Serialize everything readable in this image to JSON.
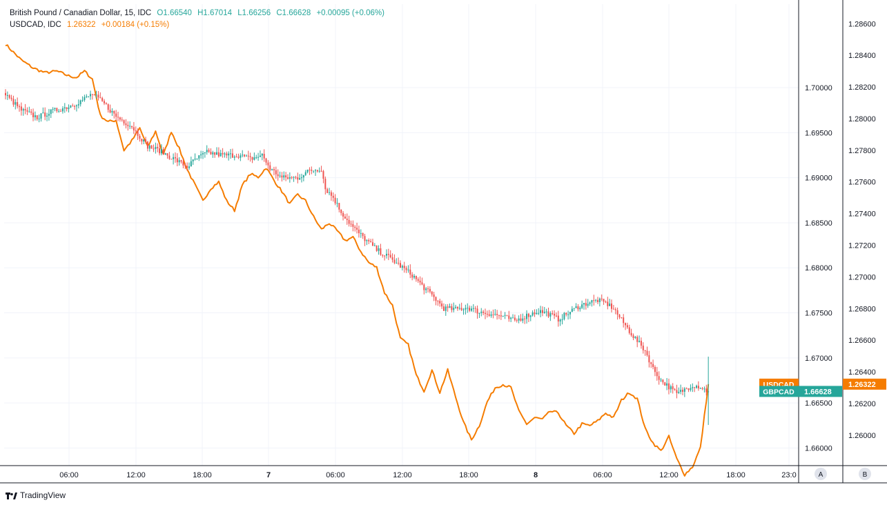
{
  "legend": {
    "main": {
      "name": "British Pound / Canadian Dollar, 15, IDC",
      "open": "O1.66540",
      "high": "H1.67014",
      "low": "L1.66256",
      "close": "C1.66628",
      "change": "+0.00095 (+0.06%)"
    },
    "compare": {
      "name": "USDCAD, IDC",
      "last": "1.26322",
      "change": "+0.00184 (+0.15%)"
    }
  },
  "footer": {
    "brand": "TradingView"
  },
  "scale_labels": {
    "left": "A",
    "right": "B"
  },
  "colors": {
    "up": "#26a69a",
    "down": "#ef5350",
    "line": "#f57c00",
    "grid": "#f0f3fa",
    "text": "#131722"
  },
  "chart_data": {
    "type": "candlestick+line",
    "x_ticks": [
      "06:00",
      "12:00",
      "18:00",
      "7",
      "06:00",
      "12:00",
      "18:00",
      "8",
      "06:00",
      "12:00",
      "18:00",
      "23:0"
    ],
    "series": [
      {
        "name": "GBPCAD",
        "type": "candlestick",
        "scale": "left",
        "last": "1.66628",
        "ylim": [
          1.6595,
          1.7085
        ],
        "ticks": [
          "1.70000",
          "1.69500",
          "1.69000",
          "1.68500",
          "1.68000",
          "1.67500",
          "1.67000",
          "1.66500",
          "1.66000"
        ],
        "path": [
          [
            0,
            1.6992
          ],
          [
            8,
            1.6975
          ],
          [
            16,
            1.6967
          ],
          [
            24,
            1.6974
          ],
          [
            32,
            1.6979
          ],
          [
            38,
            1.6985
          ],
          [
            44,
            1.6993
          ],
          [
            50,
            1.6982
          ],
          [
            56,
            1.6968
          ],
          [
            64,
            1.6957
          ],
          [
            72,
            1.6935
          ],
          [
            78,
            1.693
          ],
          [
            86,
            1.692
          ],
          [
            92,
            1.6912
          ],
          [
            96,
            1.692
          ],
          [
            102,
            1.6928
          ],
          [
            110,
            1.6925
          ],
          [
            118,
            1.6925
          ],
          [
            124,
            1.6921
          ],
          [
            130,
            1.6925
          ],
          [
            134,
            1.691
          ],
          [
            140,
            1.69
          ],
          [
            148,
            1.69
          ],
          [
            154,
            1.6908
          ],
          [
            160,
            1.691
          ],
          [
            162,
            1.6888
          ],
          [
            166,
            1.6878
          ],
          [
            170,
            1.6862
          ],
          [
            176,
            1.6845
          ],
          [
            182,
            1.6832
          ],
          [
            188,
            1.682
          ],
          [
            194,
            1.6812
          ],
          [
            200,
            1.6802
          ],
          [
            206,
            1.6792
          ],
          [
            212,
            1.6778
          ],
          [
            218,
            1.6765
          ],
          [
            222,
            1.6755
          ],
          [
            228,
            1.6754
          ],
          [
            234,
            1.6756
          ],
          [
            240,
            1.6751
          ],
          [
            246,
            1.6749
          ],
          [
            252,
            1.6746
          ],
          [
            258,
            1.6741
          ],
          [
            264,
            1.6747
          ],
          [
            270,
            1.6752
          ],
          [
            274,
            1.675
          ],
          [
            280,
            1.6743
          ],
          [
            286,
            1.6751
          ],
          [
            290,
            1.6757
          ],
          [
            296,
            1.6762
          ],
          [
            300,
            1.6764
          ],
          [
            304,
            1.6761
          ],
          [
            308,
            1.6755
          ],
          [
            312,
            1.6742
          ],
          [
            318,
            1.6724
          ],
          [
            324,
            1.6708
          ],
          [
            328,
            1.6688
          ],
          [
            332,
            1.6675
          ],
          [
            336,
            1.6668
          ],
          [
            340,
            1.666
          ],
          [
            344,
            1.6665
          ],
          [
            348,
            1.667
          ],
          [
            352,
            1.6668
          ],
          [
            356,
            1.6662
          ]
        ]
      },
      {
        "name": "USDCAD",
        "type": "line",
        "scale": "right",
        "last": "1.26322",
        "ylim": [
          1.2589,
          1.2868
        ],
        "ticks": [
          "1.28600",
          "1.28400",
          "1.28200",
          "1.28000",
          "1.27800",
          "1.27600",
          "1.27400",
          "1.27200",
          "1.27000",
          "1.26800",
          "1.26600",
          "1.26400",
          "1.26200",
          "1.26000"
        ],
        "path": [
          [
            0,
            1.2847
          ],
          [
            8,
            1.2837
          ],
          [
            14,
            1.2832
          ],
          [
            20,
            1.2829
          ],
          [
            26,
            1.283
          ],
          [
            32,
            1.2827
          ],
          [
            36,
            1.2826
          ],
          [
            40,
            1.283
          ],
          [
            44,
            1.2825
          ],
          [
            48,
            1.2802
          ],
          [
            52,
            1.2798
          ],
          [
            56,
            1.2799
          ],
          [
            60,
            1.278
          ],
          [
            64,
            1.2786
          ],
          [
            68,
            1.2794
          ],
          [
            72,
            1.2782
          ],
          [
            76,
            1.2792
          ],
          [
            80,
            1.2777
          ],
          [
            84,
            1.2792
          ],
          [
            88,
            1.2781
          ],
          [
            92,
            1.2768
          ],
          [
            96,
            1.2758
          ],
          [
            100,
            1.2748
          ],
          [
            104,
            1.2756
          ],
          [
            108,
            1.276
          ],
          [
            112,
            1.2748
          ],
          [
            116,
            1.2742
          ],
          [
            120,
            1.2758
          ],
          [
            124,
            1.2765
          ],
          [
            128,
            1.2763
          ],
          [
            132,
            1.2769
          ],
          [
            136,
            1.2761
          ],
          [
            140,
            1.2754
          ],
          [
            144,
            1.2746
          ],
          [
            148,
            1.2752
          ],
          [
            152,
            1.2748
          ],
          [
            156,
            1.2738
          ],
          [
            160,
            1.273
          ],
          [
            164,
            1.2734
          ],
          [
            168,
            1.2729
          ],
          [
            172,
            1.2723
          ],
          [
            176,
            1.2725
          ],
          [
            180,
            1.2716
          ],
          [
            184,
            1.2709
          ],
          [
            188,
            1.2706
          ],
          [
            192,
            1.269
          ],
          [
            196,
            1.2682
          ],
          [
            200,
            1.2661
          ],
          [
            204,
            1.2657
          ],
          [
            208,
            1.2638
          ],
          [
            212,
            1.2628
          ],
          [
            216,
            1.2641
          ],
          [
            220,
            1.2627
          ],
          [
            224,
            1.2641
          ],
          [
            228,
            1.2624
          ],
          [
            232,
            1.2608
          ],
          [
            236,
            1.2597
          ],
          [
            240,
            1.2606
          ],
          [
            244,
            1.2621
          ],
          [
            248,
            1.263
          ],
          [
            252,
            1.2632
          ],
          [
            256,
            1.263
          ],
          [
            260,
            1.2615
          ],
          [
            264,
            1.2607
          ],
          [
            268,
            1.2611
          ],
          [
            272,
            1.261
          ],
          [
            276,
            1.2615
          ],
          [
            280,
            1.2614
          ],
          [
            284,
            1.2606
          ],
          [
            288,
            1.2601
          ],
          [
            292,
            1.2607
          ],
          [
            296,
            1.2606
          ],
          [
            300,
            1.2609
          ],
          [
            304,
            1.2614
          ],
          [
            308,
            1.2611
          ],
          [
            312,
            1.2622
          ],
          [
            316,
            1.2627
          ],
          [
            320,
            1.2623
          ],
          [
            324,
            1.2604
          ],
          [
            328,
            1.2595
          ],
          [
            332,
            1.259
          ],
          [
            336,
            1.2599
          ],
          [
            340,
            1.2585
          ],
          [
            344,
            1.2575
          ],
          [
            348,
            1.258
          ],
          [
            352,
            1.2592
          ],
          [
            356,
            1.2632
          ]
        ]
      }
    ]
  }
}
